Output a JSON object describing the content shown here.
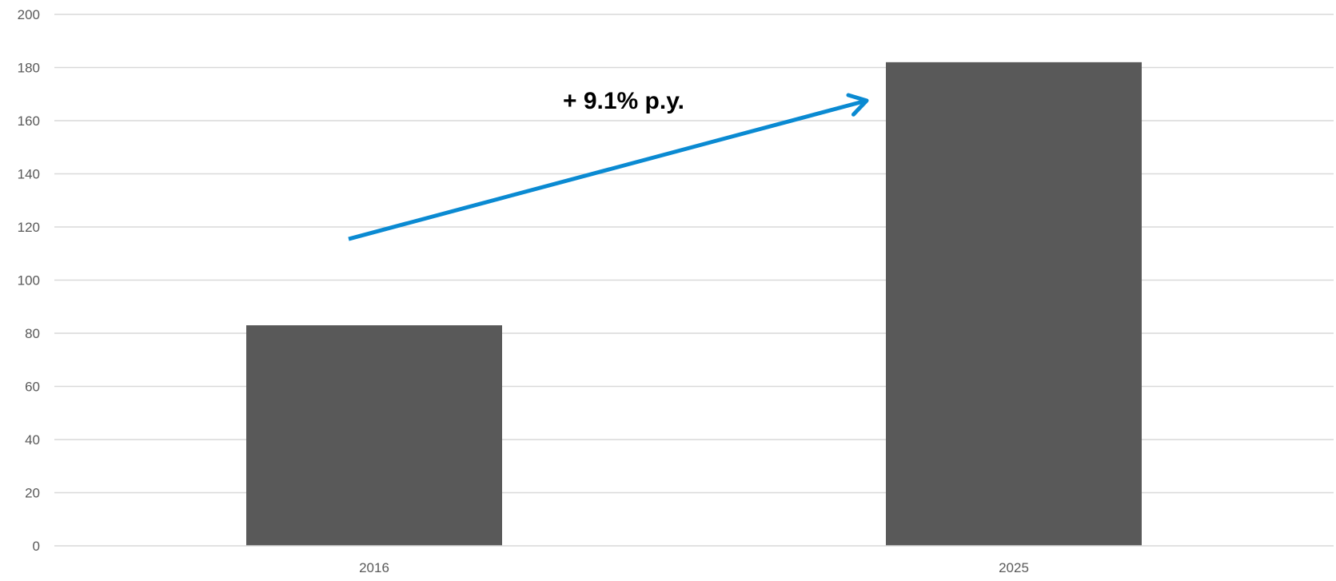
{
  "chart_data": {
    "type": "bar",
    "title": "",
    "xlabel": "",
    "ylabel": "",
    "categories": [
      "2016",
      "2025"
    ],
    "values": [
      83,
      182
    ],
    "ylim": [
      0,
      200
    ],
    "yticks": [
      0,
      20,
      40,
      60,
      80,
      100,
      120,
      140,
      160,
      180,
      200
    ],
    "grid": true,
    "legend": "none",
    "annotation": {
      "text": "+ 9.1% p.y.",
      "type": "growth-arrow",
      "from_category": "2016",
      "to_category": "2025"
    }
  },
  "colors": {
    "bar": "#595959",
    "grid": "#d9d9d9",
    "axis_text": "#595959",
    "arrow": "#0a8ad2",
    "annotation_text": "#000000"
  }
}
